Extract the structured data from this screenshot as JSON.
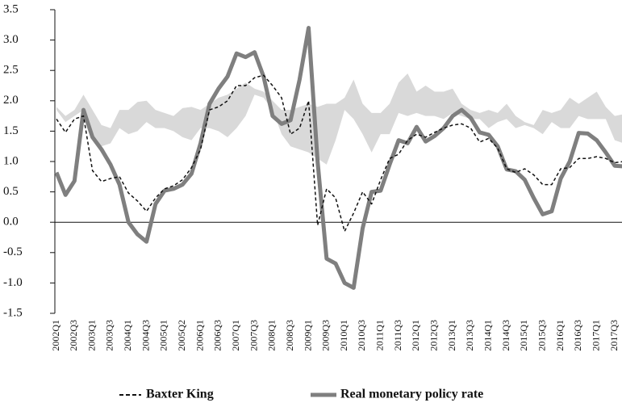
{
  "chart_data": {
    "type": "line",
    "categories": [
      "2002Q1",
      null,
      "2002Q3",
      null,
      "2003Q1",
      null,
      "2003Q3",
      null,
      "2004Q1",
      null,
      "2004Q3",
      null,
      "2005Q1",
      null,
      "2005Q2",
      null,
      "2006Q1",
      null,
      "2006Q3",
      null,
      "2007Q1",
      null,
      "2007Q3",
      null,
      "2008Q1",
      null,
      "2008Q3",
      null,
      "2009Q1",
      null,
      "2009Q3",
      null,
      "2010Q1",
      null,
      "2010Q3",
      null,
      "2011Q1",
      null,
      "2011Q3",
      null,
      "2012Q1",
      null,
      "2012Q3",
      null,
      "2013Q1",
      null,
      "2013Q3",
      null,
      "2014Q1",
      null,
      "2014Q3",
      null,
      "2015Q1",
      null,
      "2015Q3",
      null,
      "2016Q1",
      null,
      "2016Q3",
      null,
      "2017Q1",
      null,
      "2017Q3",
      null
    ],
    "series": [
      {
        "name": "Baxter King",
        "color": "#111111",
        "dash": true,
        "values": [
          1.7,
          1.48,
          1.7,
          1.75,
          0.85,
          0.67,
          0.72,
          0.75,
          0.48,
          0.35,
          0.18,
          0.4,
          0.55,
          0.6,
          0.7,
          0.9,
          1.2,
          1.85,
          1.9,
          2.0,
          2.25,
          2.25,
          2.38,
          2.42,
          2.25,
          2.05,
          1.45,
          1.55,
          2.0,
          -0.05,
          0.55,
          0.4,
          -0.15,
          0.15,
          0.5,
          0.3,
          0.7,
          1.05,
          1.12,
          1.35,
          1.45,
          1.4,
          1.48,
          1.55,
          1.6,
          1.62,
          1.55,
          1.32,
          1.38,
          1.22,
          0.88,
          0.82,
          0.88,
          0.78,
          0.62,
          0.62,
          0.88,
          0.9,
          1.05,
          1.05,
          1.08,
          1.05,
          0.98,
          1.0
        ]
      },
      {
        "name": "Real monetary policy rate",
        "color": "#7f7f7f",
        "dash": false,
        "values": [
          0.82,
          0.45,
          0.68,
          1.85,
          1.4,
          1.2,
          0.95,
          0.62,
          0.0,
          -0.2,
          -0.32,
          0.3,
          0.52,
          0.55,
          0.62,
          0.8,
          1.3,
          1.95,
          2.2,
          2.4,
          2.78,
          2.72,
          2.8,
          2.4,
          1.75,
          1.62,
          1.68,
          2.35,
          3.2,
          1.0,
          -0.6,
          -0.68,
          -1.0,
          -1.08,
          -0.1,
          0.5,
          0.52,
          0.95,
          1.35,
          1.3,
          1.57,
          1.33,
          1.42,
          1.55,
          1.75,
          1.85,
          1.72,
          1.48,
          1.44,
          1.25,
          0.87,
          0.84,
          0.7,
          0.4,
          0.13,
          0.18,
          0.72,
          1.0,
          1.47,
          1.46,
          1.35,
          1.15,
          0.93,
          0.92
        ]
      }
    ],
    "band": {
      "color": "#d9d9d9",
      "upper": [
        1.9,
        1.75,
        1.85,
        2.1,
        1.85,
        1.6,
        1.55,
        1.85,
        1.85,
        1.98,
        2.0,
        1.85,
        1.8,
        1.75,
        1.88,
        1.9,
        1.85,
        1.95,
        2.05,
        2.1,
        2.2,
        2.3,
        2.2,
        2.15,
        2.0,
        1.85,
        1.85,
        1.9,
        1.95,
        1.9,
        1.95,
        1.95,
        2.05,
        2.35,
        1.95,
        1.8,
        1.8,
        1.95,
        2.3,
        2.45,
        2.15,
        2.25,
        2.15,
        2.15,
        2.2,
        1.95,
        1.85,
        1.8,
        1.85,
        1.8,
        1.95,
        1.75,
        1.65,
        1.6,
        1.85,
        1.8,
        1.85,
        2.05,
        1.95,
        2.05,
        2.15,
        1.9,
        1.75,
        1.78
      ],
      "lower": [
        1.85,
        1.65,
        1.75,
        1.85,
        1.4,
        1.25,
        1.3,
        1.55,
        1.45,
        1.5,
        1.65,
        1.55,
        1.55,
        1.5,
        1.4,
        1.35,
        1.55,
        1.55,
        1.5,
        1.4,
        1.55,
        1.75,
        2.1,
        2.05,
        1.85,
        1.45,
        1.25,
        1.2,
        1.15,
        1.05,
        0.95,
        1.35,
        1.85,
        1.7,
        1.45,
        1.15,
        1.45,
        1.45,
        1.8,
        1.75,
        1.8,
        1.75,
        1.75,
        1.7,
        1.8,
        1.75,
        1.7,
        1.7,
        1.55,
        1.65,
        1.7,
        1.55,
        1.6,
        1.55,
        1.45,
        1.65,
        1.55,
        1.55,
        1.75,
        1.7,
        1.7,
        1.7,
        1.35,
        1.3
      ]
    },
    "ylim": [
      -1.5,
      3.5
    ],
    "yticks": [
      {
        "value": -1.5,
        "label": "-1.5"
      },
      {
        "value": -1,
        "label": "-1.0"
      },
      -0.5,
      {
        "value": 0,
        "label": "0.0"
      },
      0.5,
      {
        "value": 1,
        "label": "1.0"
      },
      1.5,
      {
        "value": 2,
        "label": "2.0"
      },
      2.5,
      {
        "value": 3,
        "label": "3.0"
      },
      3.5
    ]
  }
}
